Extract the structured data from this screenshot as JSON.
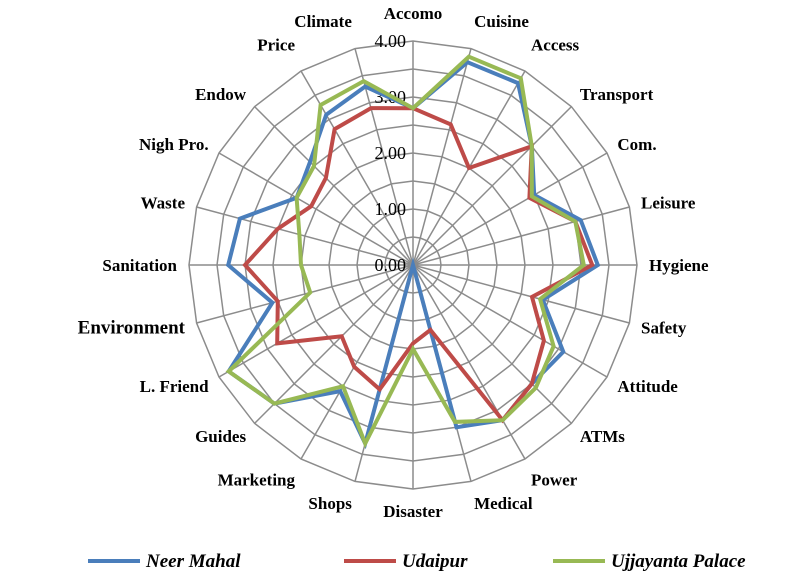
{
  "chart_data": {
    "type": "radar",
    "categories": [
      "Accomo",
      "Cuisine",
      "Access",
      "Transport",
      "Com.",
      "Leisure",
      "Hygiene",
      "Safety",
      "Attitude",
      "ATMs",
      "Power",
      "Medical",
      "Disaster",
      "Shops",
      "Marketing",
      "Guides",
      "L. Friend",
      "Environment",
      "Sanitation",
      "Waste",
      "Nigh Pro.",
      "Endow",
      "Price",
      "Climate"
    ],
    "rlim": [
      0,
      4
    ],
    "ticks": [
      "0.00",
      "1.00",
      "2.00",
      "3.00",
      "4.00"
    ],
    "tick_values": [
      0,
      1,
      2,
      3,
      4
    ],
    "grid": true,
    "legend_position": "bottom",
    "series": [
      {
        "name": "Neer Mahal",
        "color": "#4a7ebb",
        "values": [
          2.8,
          3.75,
          3.75,
          3.0,
          2.5,
          3.1,
          3.3,
          2.4,
          3.1,
          3.0,
          3.2,
          3.0,
          0.0,
          3.3,
          2.6,
          3.5,
          3.8,
          2.6,
          3.3,
          3.2,
          2.4,
          2.6,
          3.1,
          3.3
        ]
      },
      {
        "name": "Udaipur",
        "color": "#be4b48",
        "values": [
          2.8,
          2.6,
          2.0,
          3.0,
          2.4,
          3.0,
          3.2,
          2.2,
          2.7,
          3.0,
          3.2,
          1.2,
          1.4,
          2.3,
          2.1,
          1.8,
          2.8,
          2.5,
          3.0,
          2.5,
          2.1,
          2.2,
          2.8,
          2.9
        ]
      },
      {
        "name": "Ujjayanta Palace",
        "color": "#98b954",
        "values": [
          2.8,
          3.85,
          3.85,
          3.0,
          2.45,
          3.0,
          3.05,
          2.35,
          2.9,
          3.1,
          3.2,
          2.9,
          1.5,
          3.3,
          2.5,
          3.5,
          3.8,
          1.9,
          2.0,
          2.1,
          2.4,
          2.5,
          3.3,
          3.4
        ]
      }
    ]
  }
}
